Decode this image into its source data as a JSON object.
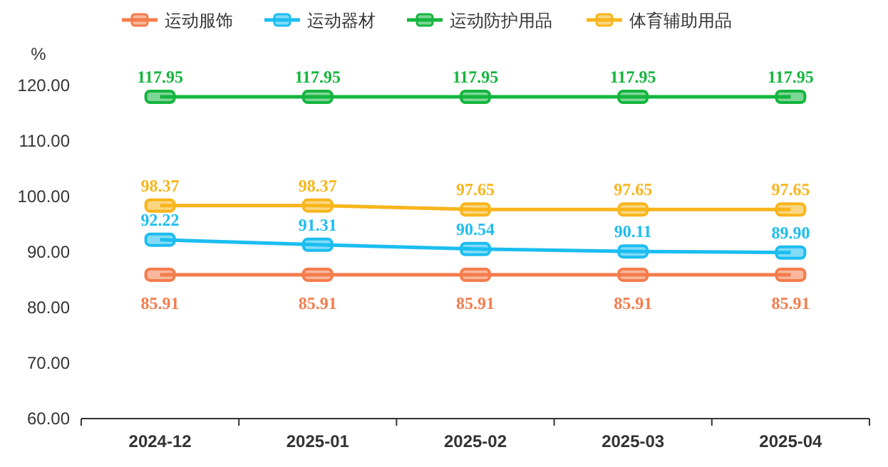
{
  "chart_data": {
    "type": "line",
    "ylabel": "%",
    "categories": [
      "2024-12",
      "2025-01",
      "2025-02",
      "2025-03",
      "2025-04"
    ],
    "series": [
      {
        "name": "运动服饰",
        "color": "#f47c4c",
        "values": [
          85.91,
          85.91,
          85.91,
          85.91,
          85.91
        ],
        "value_labels": [
          "85.91",
          "85.91",
          "85.91",
          "85.91",
          "85.91"
        ]
      },
      {
        "name": "运动器材",
        "color": "#1cbdf0",
        "values": [
          92.22,
          91.31,
          90.54,
          90.11,
          89.9
        ],
        "value_labels": [
          "92.22",
          "91.31",
          "90.54",
          "90.11",
          "89.90"
        ]
      },
      {
        "name": "运动防护用品",
        "color": "#14b53e",
        "values": [
          117.95,
          117.95,
          117.95,
          117.95,
          117.95
        ],
        "value_labels": [
          "117.95",
          "117.95",
          "117.95",
          "117.95",
          "117.95"
        ]
      },
      {
        "name": "体育辅助用品",
        "color": "#f8b51c",
        "values": [
          98.37,
          98.37,
          97.65,
          97.65,
          97.65
        ],
        "value_labels": [
          "98.37",
          "98.37",
          "97.65",
          "97.65",
          "97.65"
        ]
      }
    ],
    "ylim": [
      60,
      120
    ],
    "yticks": [
      {
        "value": 60,
        "label": "60.00"
      },
      {
        "value": 70,
        "label": "70.00"
      },
      {
        "value": 80,
        "label": "80.00"
      },
      {
        "value": 90,
        "label": "90.00"
      },
      {
        "value": 100,
        "label": "100.00"
      },
      {
        "value": 110,
        "label": "110.00"
      },
      {
        "value": 120,
        "label": "120.00"
      }
    ],
    "legend": "top",
    "marker": "square",
    "grid": false
  }
}
